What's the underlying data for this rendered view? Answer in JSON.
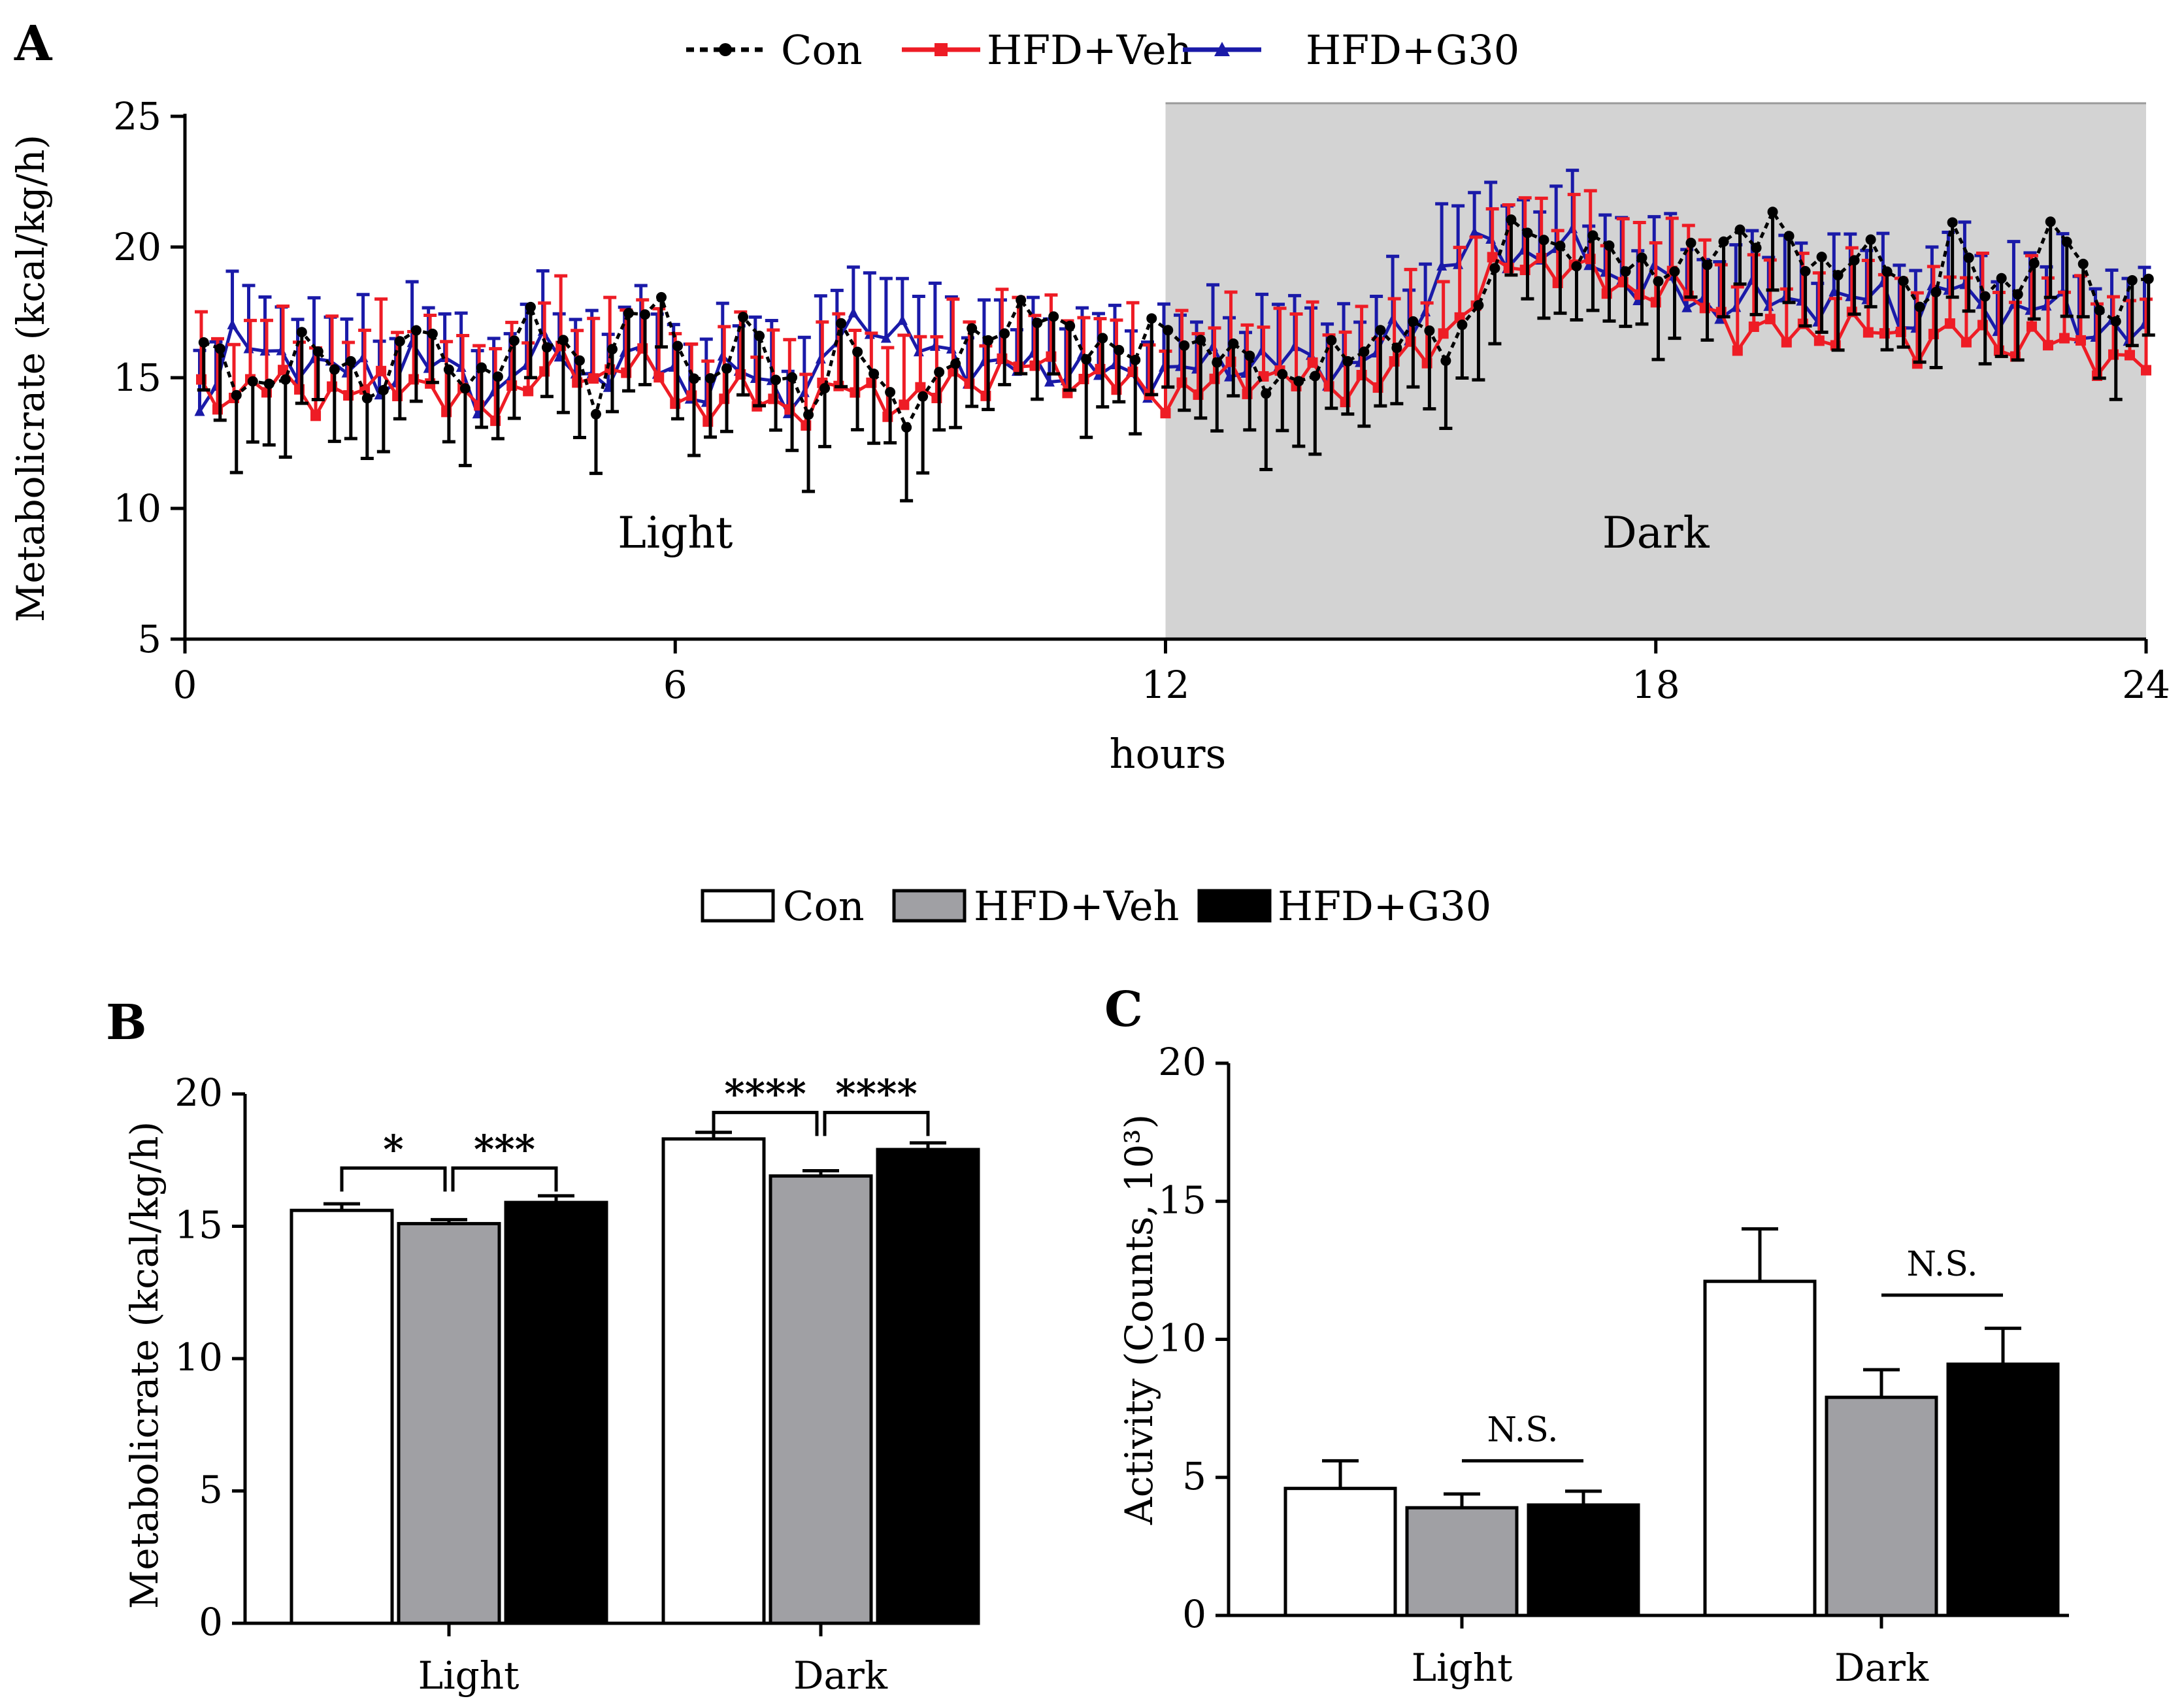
{
  "chart_data": [
    {
      "id": "A",
      "type": "line",
      "panel_label": "A",
      "xlabel": "hours",
      "ylabel": "Metabolicrate (kcal/kg/h)",
      "xlim": [
        0,
        24
      ],
      "ylim": [
        5,
        25
      ],
      "xticks": [
        0,
        6,
        12,
        18,
        24
      ],
      "yticks": [
        5,
        10,
        15,
        20,
        25
      ],
      "shaded_region": {
        "x_start": 12,
        "x_end": 24,
        "color": "#d3d3d3"
      },
      "regions": [
        {
          "label": "Light",
          "x": 6,
          "y": 8.5
        },
        {
          "label": "Dark",
          "x": 18,
          "y": 8.5
        }
      ],
      "series": [
        {
          "name": "Con",
          "color": "#000000",
          "style": "dotted",
          "marker": "circle",
          "key_y": [
            16.0,
            15.0,
            14.7,
            16.3,
            15.6,
            14.0,
            17.6,
            15.2,
            14.3,
            17.8,
            16.2,
            14.0,
            18.3,
            17.0,
            14.3,
            17.2,
            15.2,
            14.0,
            16.8,
            14.4,
            13.8,
            15.6,
            17.0,
            17.5,
            16.8,
            16.5,
            15.6,
            17.3,
            16.0,
            15.7,
            15.0,
            15.0,
            16.0,
            16.7,
            16.5,
            16.2,
            19.0,
            20.9,
            20.0,
            19.8,
            19.4,
            19.2,
            19.4,
            20.7,
            20.8,
            19.0,
            19.8,
            19.5,
            17.6,
            20.6,
            17.8,
            19.2,
            21.0,
            17.5,
            18.4
          ],
          "err": 2.6
        },
        {
          "name": "HFD+Veh",
          "color": "#ee1c25",
          "style": "solid",
          "marker": "square",
          "key_y": [
            14.2,
            14.6,
            14.8,
            14.2,
            14.6,
            14.4,
            15.2,
            14.0,
            13.6,
            14.9,
            15.4,
            15.0,
            15.9,
            14.5,
            13.9,
            14.4,
            14.0,
            13.9,
            14.6,
            14.4,
            13.9,
            14.8,
            15.1,
            15.4,
            15.3,
            15.0,
            14.6,
            14.4,
            14.5,
            15.1,
            15.2,
            14.8,
            14.7,
            15.0,
            15.8,
            17.0,
            18.6,
            19.6,
            19.2,
            18.8,
            18.5,
            18.3,
            18.0,
            16.8,
            16.6,
            16.8,
            16.8,
            16.7,
            16.4,
            16.6,
            16.5,
            16.4,
            16.3,
            16.0,
            15.6
          ],
          "err": 2.4
        },
        {
          "name": "HFD+G30",
          "color": "#1a1aa8",
          "style": "solid",
          "marker": "triangle",
          "key_y": [
            14.0,
            16.9,
            15.4,
            15.8,
            15.5,
            14.5,
            16.2,
            15.2,
            14.0,
            15.7,
            16.0,
            15.0,
            15.6,
            15.6,
            14.2,
            15.4,
            14.8,
            14.0,
            17.1,
            17.2,
            16.1,
            16.0,
            15.3,
            15.4,
            15.4,
            15.3,
            15.0,
            15.2,
            15.4,
            15.6,
            15.7,
            15.6,
            15.4,
            16.0,
            17.0,
            19.7,
            20.0,
            19.7,
            20.0,
            19.6,
            18.5,
            18.7,
            17.8,
            17.8,
            18.0,
            18.0,
            17.6,
            18.5,
            17.0,
            18.6,
            17.8,
            17.2,
            18.0,
            16.8,
            16.6
          ],
          "err": 2.1
        }
      ]
    },
    {
      "id": "B",
      "type": "bar",
      "panel_label": "B",
      "categories": [
        "Light",
        "Dark"
      ],
      "ylabel": "Metabolicrate (kcal/kg/h)",
      "ylim": [
        0,
        20
      ],
      "yticks": [
        0,
        5,
        10,
        15,
        20
      ],
      "series": [
        {
          "name": "Con",
          "color": "#ffffff",
          "values": [
            15.6,
            18.3
          ],
          "errors": [
            0.25,
            0.25
          ]
        },
        {
          "name": "HFD+Veh",
          "color": "#a0a0a4",
          "values": [
            15.1,
            16.9
          ],
          "errors": [
            0.15,
            0.2
          ]
        },
        {
          "name": "HFD+G30",
          "color": "#000000",
          "values": [
            15.9,
            17.9
          ],
          "errors": [
            0.25,
            0.25
          ]
        }
      ],
      "annotations": [
        {
          "text": "*",
          "category": "Light",
          "from_series": 0,
          "to_series": 1,
          "y": 17.2
        },
        {
          "text": "***",
          "category": "Light",
          "from_series": 1,
          "to_series": 2,
          "y": 17.2
        },
        {
          "text": "****",
          "category": "Dark",
          "from_series": 0,
          "to_series": 1,
          "y": 19.3
        },
        {
          "text": "****",
          "category": "Dark",
          "from_series": 1,
          "to_series": 2,
          "y": 19.3
        }
      ]
    },
    {
      "id": "C",
      "type": "bar",
      "panel_label": "C",
      "categories": [
        "Light",
        "Dark"
      ],
      "ylabel": "Activity (Counts, 10³)",
      "ylim": [
        0,
        20
      ],
      "yticks": [
        0,
        5,
        10,
        15,
        20
      ],
      "series": [
        {
          "name": "Con",
          "color": "#ffffff",
          "values": [
            4.6,
            12.1
          ],
          "errors": [
            1.0,
            1.9
          ]
        },
        {
          "name": "HFD+Veh",
          "color": "#a0a0a4",
          "values": [
            3.9,
            7.9
          ],
          "errors": [
            0.5,
            1.0
          ]
        },
        {
          "name": "HFD+G30",
          "color": "#000000",
          "values": [
            4.0,
            9.1
          ],
          "errors": [
            0.5,
            1.3
          ]
        }
      ],
      "annotations": [
        {
          "text": "N.S.",
          "category": "Light",
          "from_series": 1,
          "to_series": 2,
          "y": 5.6
        },
        {
          "text": "N.S.",
          "category": "Dark",
          "from_series": 1,
          "to_series": 2,
          "y": 11.6
        }
      ]
    }
  ],
  "legend_line": {
    "items": [
      {
        "label": "Con",
        "color": "#000000",
        "style": "dotted",
        "marker": "circle"
      },
      {
        "label": "HFD+Veh",
        "color": "#ee1c25",
        "style": "solid",
        "marker": "square"
      },
      {
        "label": "HFD+G30",
        "color": "#1a1aa8",
        "style": "solid",
        "marker": "triangle"
      }
    ]
  },
  "legend_bar": {
    "items": [
      {
        "label": "Con",
        "color": "#ffffff"
      },
      {
        "label": "HFD+Veh",
        "color": "#a0a0a4"
      },
      {
        "label": "HFD+G30",
        "color": "#000000"
      }
    ]
  }
}
